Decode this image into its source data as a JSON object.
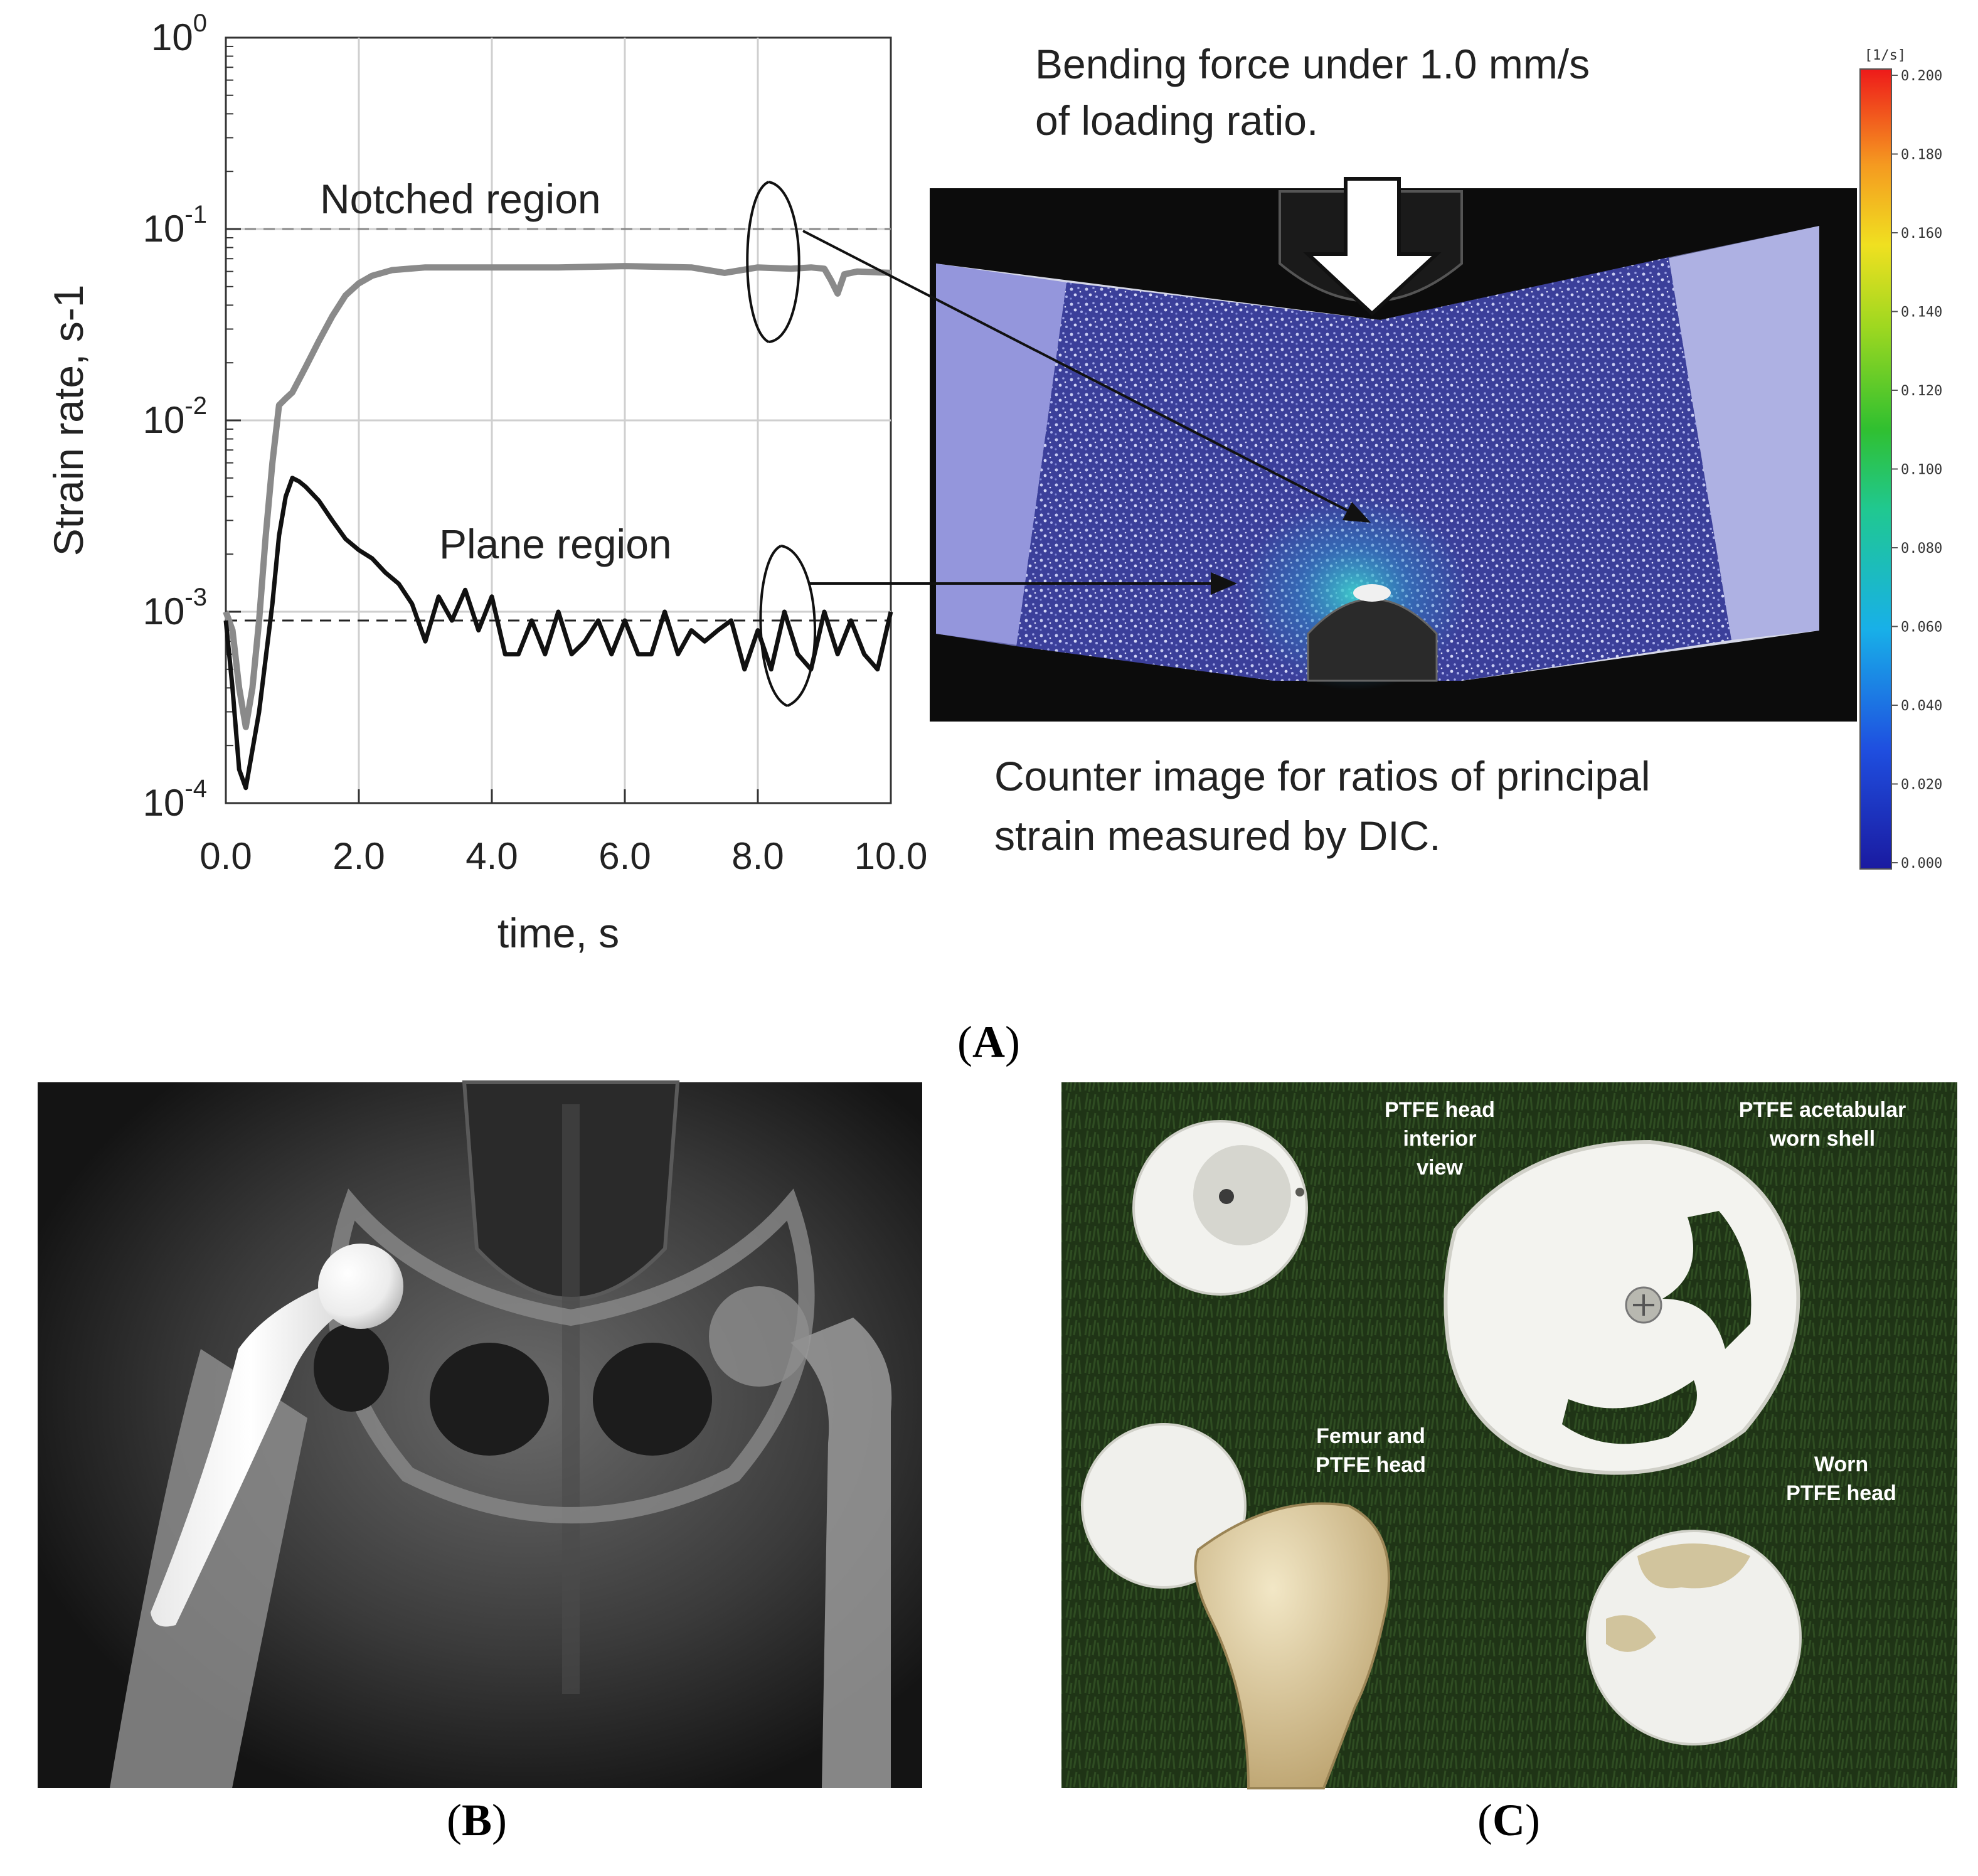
{
  "panels": {
    "a": {
      "label": "A"
    },
    "b": {
      "label": "B"
    },
    "c": {
      "label": "C"
    }
  },
  "chart_data": {
    "type": "line",
    "title": "",
    "xlabel": "time, s",
    "ylabel": "Strain rate, s-1",
    "xlim": [
      0,
      10
    ],
    "ylim": [
      0.0001,
      1
    ],
    "y_scale": "log",
    "grid": true,
    "x_ticks": [
      "0.0",
      "2.0",
      "4.0",
      "6.0",
      "8.0",
      "10.0"
    ],
    "y_ticks": [
      {
        "base": "10",
        "exp": "0",
        "value": 1
      },
      {
        "base": "10",
        "exp": "-1",
        "value": 0.1
      },
      {
        "base": "10",
        "exp": "-2",
        "value": 0.01
      },
      {
        "base": "10",
        "exp": "-3",
        "value": 0.001
      },
      {
        "base": "10",
        "exp": "-4",
        "value": 0.0001
      }
    ],
    "reference_lines": [
      0.1,
      0.0009
    ],
    "series": [
      {
        "color": "#8a8a8a",
        "x": [
          0,
          0.1,
          0.2,
          0.3,
          0.4,
          0.5,
          0.6,
          0.7,
          0.8,
          0.9,
          1.0,
          1.2,
          1.4,
          1.6,
          1.8,
          2.0,
          2.2,
          2.5,
          3.0,
          4.0,
          5.0,
          6.0,
          7.0,
          7.5,
          8.0,
          8.5,
          8.8,
          9.0,
          9.1,
          9.2,
          9.3,
          9.5,
          10.0
        ],
        "y": [
          0.001,
          0.0008,
          0.0004,
          0.00025,
          0.0004,
          0.0009,
          0.0025,
          0.006,
          0.012,
          0.013,
          0.014,
          0.019,
          0.026,
          0.035,
          0.045,
          0.052,
          0.057,
          0.061,
          0.063,
          0.063,
          0.063,
          0.064,
          0.063,
          0.059,
          0.063,
          0.062,
          0.063,
          0.062,
          0.054,
          0.046,
          0.058,
          0.06,
          0.059
        ]
      },
      {
        "color": "#111111",
        "x": [
          0,
          0.1,
          0.2,
          0.3,
          0.5,
          0.7,
          0.8,
          0.9,
          1.0,
          1.1,
          1.2,
          1.4,
          1.6,
          1.8,
          2.0,
          2.2,
          2.4,
          2.6,
          2.8,
          3.0,
          3.2,
          3.4,
          3.6,
          3.8,
          4.0,
          4.2,
          4.4,
          4.6,
          4.8,
          5.0,
          5.2,
          5.4,
          5.6,
          5.8,
          6.0,
          6.2,
          6.4,
          6.6,
          6.8,
          7.0,
          7.2,
          7.4,
          7.6,
          7.8,
          8.0,
          8.2,
          8.4,
          8.6,
          8.8,
          9.0,
          9.2,
          9.4,
          9.6,
          9.8,
          10.0
        ],
        "y": [
          0.0009,
          0.0004,
          0.00015,
          0.00012,
          0.0003,
          0.0011,
          0.0025,
          0.004,
          0.005,
          0.0048,
          0.0045,
          0.0038,
          0.003,
          0.0024,
          0.0021,
          0.0019,
          0.0016,
          0.0014,
          0.0011,
          0.0007,
          0.0012,
          0.0009,
          0.0013,
          0.0008,
          0.0012,
          0.0006,
          0.0006,
          0.0009,
          0.0006,
          0.001,
          0.0006,
          0.0007,
          0.0009,
          0.0006,
          0.0009,
          0.0006,
          0.0006,
          0.001,
          0.0006,
          0.0008,
          0.0007,
          0.0008,
          0.0009,
          0.0005,
          0.0008,
          0.0005,
          0.001,
          0.0006,
          0.0005,
          0.001,
          0.0006,
          0.0009,
          0.0006,
          0.0005,
          0.001
        ]
      }
    ],
    "annotations": {
      "notched": "Notched region",
      "plane": "Plane region"
    }
  },
  "dic": {
    "caption_top_1": "Bending force under 1.0 mm/s",
    "caption_top_2": "of loading ratio.",
    "caption_bottom_1": "Counter image for ratios of principal",
    "caption_bottom_2": "strain measured by DIC.",
    "colorbar_unit": "[1/s]",
    "colorbar_ticks": [
      "0.200",
      "0.180",
      "0.160",
      "0.140",
      "0.120",
      "0.100",
      "0.080",
      "0.060",
      "0.040",
      "0.020",
      "0.000"
    ]
  },
  "photo_c": {
    "label_head_interior": [
      "PTFE head",
      "interior",
      "view"
    ],
    "label_shell": [
      "PTFE acetabular",
      "worn shell"
    ],
    "label_femur": [
      "Femur and",
      "PTFE head"
    ],
    "label_worn": [
      "Worn",
      "PTFE head"
    ]
  }
}
